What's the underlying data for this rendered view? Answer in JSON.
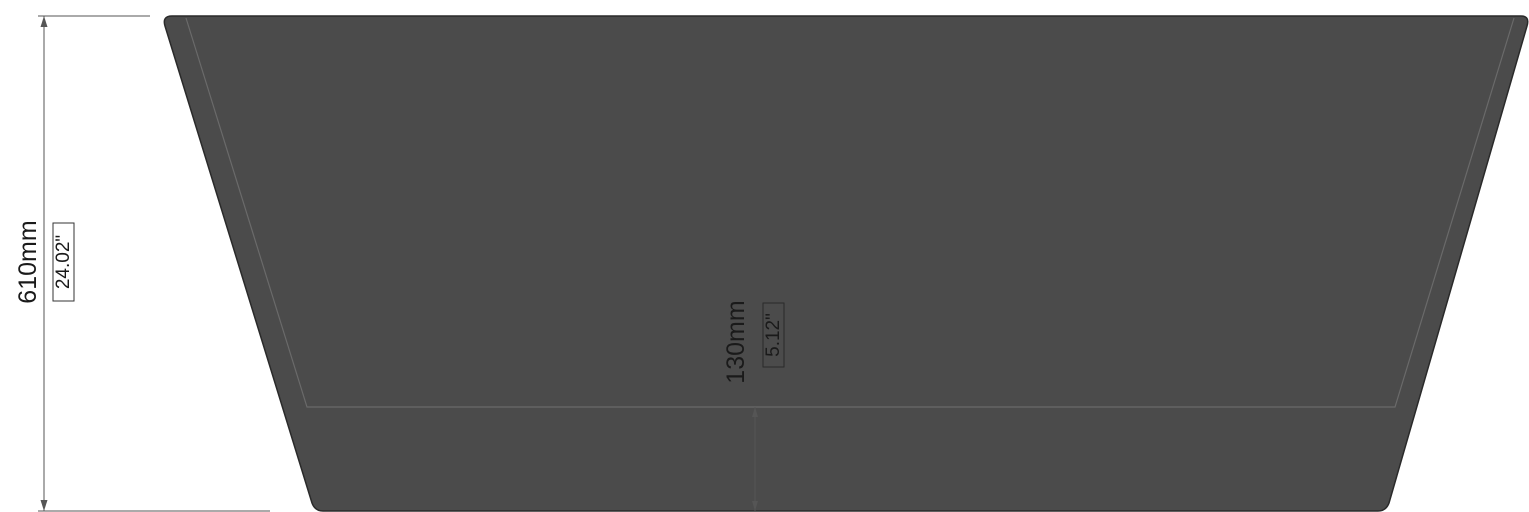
{
  "drawing": {
    "view": "side elevation",
    "body_color": "#4b4b4b",
    "edge_color": "#2a2a2a",
    "inner_line_color": "#6a6a6a",
    "dimension_line_color": "#555555",
    "overall_height": {
      "metric": "610mm",
      "imperial": "24.02\""
    },
    "base_thickness": {
      "metric": "130mm",
      "imperial": "5.12\""
    }
  }
}
